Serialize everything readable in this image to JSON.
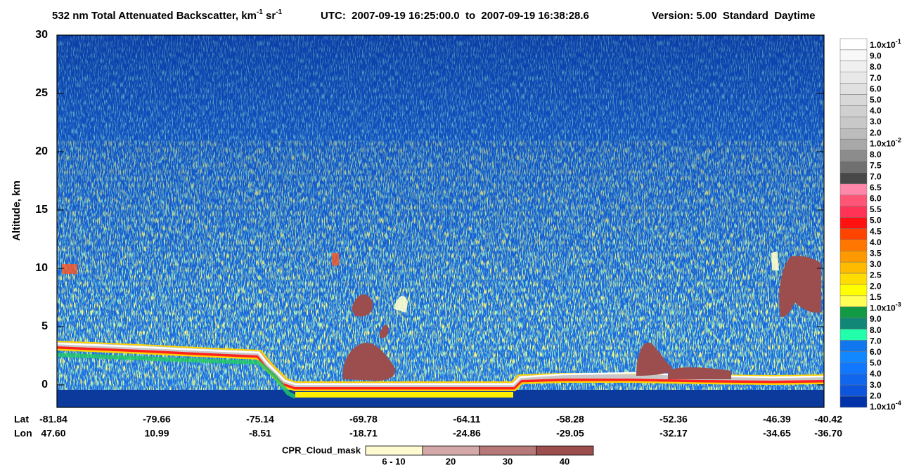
{
  "chart_data": {
    "type": "lidar-profile",
    "title": [
      {
        "text": "532 nm Total Attenuated Backscatter, km"
      },
      {
        "sup": "-1"
      },
      {
        "text": " sr"
      },
      {
        "sup": "-1"
      }
    ],
    "utc": "UTC:  2007-09-19 16:25:00.0  to  2007-09-19 16:38:28.6",
    "version": "Version: 5.00  Standard  Daytime",
    "y_label": "Altitude, km",
    "ylim": [
      -1.93,
      30
    ],
    "yticks": [
      0,
      5,
      10,
      15,
      20,
      25,
      30
    ],
    "x_row_labels": [
      "Lat",
      "Lon"
    ],
    "lat": [
      "-81.84",
      "-79.66",
      "-75.14",
      "-69.78",
      "-64.11",
      "-58.28",
      "-52.36",
      "-46.39",
      "-40.42"
    ],
    "lon": [
      "47.60",
      "10.99",
      "-8.51",
      "-18.71",
      "-24.86",
      "-29.05",
      "-32.17",
      "-34.65",
      "-36.70"
    ],
    "colorbar": {
      "labels": [
        {
          "base": "1.0x10",
          "exp": "-1"
        },
        {
          "base": "9.0"
        },
        {
          "base": "8.0"
        },
        {
          "base": "7.0"
        },
        {
          "base": "6.0"
        },
        {
          "base": "5.0"
        },
        {
          "base": "4.0"
        },
        {
          "base": "3.0"
        },
        {
          "base": "2.0"
        },
        {
          "base": "1.0x10",
          "exp": "-2"
        },
        {
          "base": "8.0"
        },
        {
          "base": "7.5"
        },
        {
          "base": "7.0"
        },
        {
          "base": "6.5"
        },
        {
          "base": "6.0"
        },
        {
          "base": "5.5"
        },
        {
          "base": "5.0"
        },
        {
          "base": "4.5"
        },
        {
          "base": "4.0"
        },
        {
          "base": "3.5"
        },
        {
          "base": "3.0"
        },
        {
          "base": "2.5"
        },
        {
          "base": "2.0"
        },
        {
          "base": "1.5"
        },
        {
          "base": "1.0x10",
          "exp": "-3"
        },
        {
          "base": "9.0"
        },
        {
          "base": "8.0"
        },
        {
          "base": "7.0"
        },
        {
          "base": "6.0"
        },
        {
          "base": "5.0"
        },
        {
          "base": "4.0"
        },
        {
          "base": "3.0"
        },
        {
          "base": "2.0"
        },
        {
          "base": "1.0x10",
          "exp": "-4"
        }
      ],
      "colors": [
        "#ffffff",
        "#f8f8f8",
        "#f0f0f0",
        "#e8e8e8",
        "#e0e0e0",
        "#d8d8d8",
        "#d0d0d0",
        "#c8c8c8",
        "#bcbcbc",
        "#a8a8a8",
        "#8c8c8c",
        "#707070",
        "#484848",
        "#ff88aa",
        "#ff5577",
        "#ff3355",
        "#ff1111",
        "#ff4400",
        "#ff7700",
        "#ff9900",
        "#ffbb00",
        "#ffdd00",
        "#ffff00",
        "#ffff55",
        "#119944",
        "#118877",
        "#22ffaa",
        "#1177ee",
        "#1188ff",
        "#1177ff",
        "#1166ee",
        "#0e55dd",
        "#0033aa"
      ]
    },
    "cpr_legend": {
      "title": "CPR_Cloud_mask",
      "labels": [
        "6 - 10",
        "20",
        "30",
        "40"
      ],
      "colors": [
        "#fffbd0",
        "#d4a8a8",
        "#b67878",
        "#9c4e4e"
      ]
    }
  }
}
